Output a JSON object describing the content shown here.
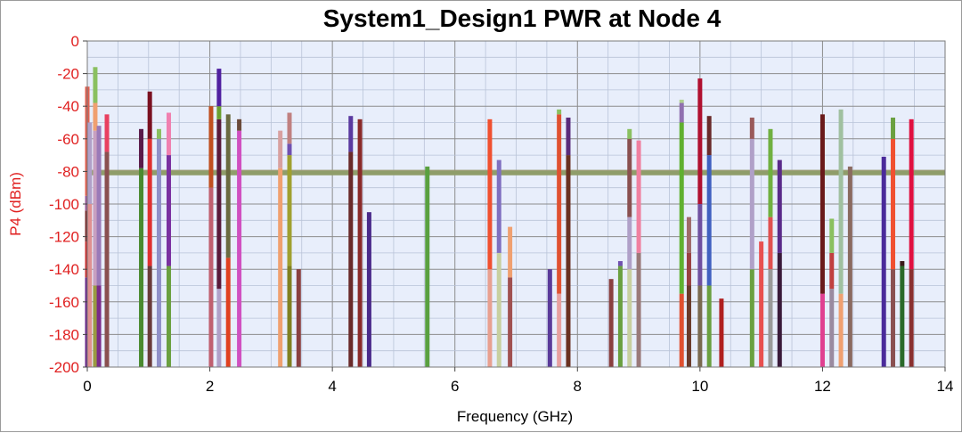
{
  "chart_data": {
    "type": "bar",
    "title": "System1_Design1 PWR at Node 4",
    "xlabel": "Frequency (GHz)",
    "ylabel": "P4 (dBm)",
    "xlim": [
      0,
      14
    ],
    "ylim": [
      -200,
      0
    ],
    "x_ticks": [
      "0",
      "2",
      "4",
      "6",
      "8",
      "10",
      "12",
      "14"
    ],
    "y_ticks": [
      "0",
      "-20",
      "-40",
      "-60",
      "-80",
      "-100",
      "-120",
      "-140",
      "-160",
      "-180",
      "-200"
    ],
    "grid": true,
    "background_color": "#e8eefb",
    "ytick_color": "#e02020",
    "noise_floor": {
      "y": -81,
      "color": "#8f9d6a"
    },
    "spectral_lines": [
      {
        "x": 0.0,
        "segments": [
          [
            -200,
            -145,
            "#6a2a8a"
          ],
          [
            -145,
            -123,
            "#c83232"
          ],
          [
            -123,
            -104,
            "#7a3030"
          ],
          [
            -104,
            -95,
            "#9a5a9a"
          ],
          [
            -95,
            -28,
            "#e06050"
          ]
        ]
      },
      {
        "x": 0.04,
        "segments": [
          [
            -200,
            -100,
            "#e09090"
          ],
          [
            -100,
            -50,
            "#b0a0c8"
          ]
        ]
      },
      {
        "x": 0.13,
        "segments": [
          [
            -200,
            -150,
            "#9a9a40"
          ],
          [
            -150,
            -55,
            "#c8a0c0"
          ],
          [
            -55,
            -38,
            "#f0a070"
          ],
          [
            -38,
            -16,
            "#8ac060"
          ]
        ]
      },
      {
        "x": 0.19,
        "segments": [
          [
            -200,
            -150,
            "#7a2a8a"
          ],
          [
            -150,
            -52,
            "#9a7ab8"
          ]
        ]
      },
      {
        "x": 0.32,
        "segments": [
          [
            -200,
            -68,
            "#8a5050"
          ],
          [
            -68,
            -45,
            "#e84060"
          ]
        ]
      },
      {
        "x": 0.88,
        "segments": [
          [
            -200,
            -78,
            "#4a8a30"
          ],
          [
            -78,
            -54,
            "#5a1a4a"
          ]
        ]
      },
      {
        "x": 1.02,
        "segments": [
          [
            -200,
            -138,
            "#6a3a3a"
          ],
          [
            -138,
            -60,
            "#e03030"
          ],
          [
            -60,
            -31,
            "#7a1020"
          ]
        ]
      },
      {
        "x": 1.17,
        "segments": [
          [
            -200,
            -60,
            "#9090c8"
          ],
          [
            -60,
            -54,
            "#8ac060"
          ]
        ]
      },
      {
        "x": 1.33,
        "segments": [
          [
            -200,
            -138,
            "#6aa040"
          ],
          [
            -138,
            -70,
            "#7a30a0"
          ],
          [
            -70,
            -44,
            "#f080b0"
          ]
        ]
      },
      {
        "x": 2.02,
        "segments": [
          [
            -200,
            -90,
            "#c06070"
          ],
          [
            -90,
            -40,
            "#c05020"
          ]
        ]
      },
      {
        "x": 2.15,
        "segments": [
          [
            -200,
            -152,
            "#b0a0c8"
          ],
          [
            -152,
            -48,
            "#5a1a3a"
          ],
          [
            -48,
            -40,
            "#6aa030"
          ],
          [
            -40,
            -17,
            "#5020a0"
          ]
        ]
      },
      {
        "x": 2.3,
        "segments": [
          [
            -200,
            -133,
            "#e04020"
          ],
          [
            -133,
            -45,
            "#6a6a40"
          ]
        ]
      },
      {
        "x": 2.48,
        "segments": [
          [
            -200,
            -55,
            "#d050c0"
          ],
          [
            -55,
            -48,
            "#6a4a3a"
          ]
        ]
      },
      {
        "x": 3.15,
        "segments": [
          [
            -200,
            -78,
            "#f0a070"
          ],
          [
            -78,
            -55,
            "#d8a0a0"
          ]
        ]
      },
      {
        "x": 3.3,
        "segments": [
          [
            -200,
            -138,
            "#808020"
          ],
          [
            -138,
            -70,
            "#a0a030"
          ],
          [
            -70,
            -63,
            "#7050b0"
          ],
          [
            -63,
            -44,
            "#c08080"
          ]
        ]
      },
      {
        "x": 3.45,
        "segments": [
          [
            -200,
            -140,
            "#8a4040"
          ]
        ]
      },
      {
        "x": 4.3,
        "segments": [
          [
            -200,
            -68,
            "#6a2a2a"
          ],
          [
            -68,
            -46,
            "#5a3aa0"
          ]
        ]
      },
      {
        "x": 4.45,
        "segments": [
          [
            -200,
            -48,
            "#8a2a2a"
          ]
        ]
      },
      {
        "x": 4.6,
        "segments": [
          [
            -200,
            -105,
            "#4a2a8a"
          ]
        ]
      },
      {
        "x": 5.55,
        "segments": [
          [
            -200,
            -77,
            "#5aa040"
          ]
        ]
      },
      {
        "x": 6.57,
        "segments": [
          [
            -200,
            -140,
            "#e8a090"
          ],
          [
            -140,
            -48,
            "#f05030"
          ]
        ]
      },
      {
        "x": 6.72,
        "segments": [
          [
            -200,
            -130,
            "#c8d0a0"
          ],
          [
            -130,
            -73,
            "#8070c0"
          ]
        ]
      },
      {
        "x": 6.9,
        "segments": [
          [
            -200,
            -145,
            "#a05050"
          ],
          [
            -145,
            -114,
            "#f0a070"
          ]
        ]
      },
      {
        "x": 7.55,
        "segments": [
          [
            -200,
            -140,
            "#5a3a9a"
          ]
        ]
      },
      {
        "x": 7.7,
        "segments": [
          [
            -200,
            -155,
            "#e8a0a0"
          ],
          [
            -155,
            -45,
            "#e05030"
          ],
          [
            -45,
            -42,
            "#8ac060"
          ]
        ]
      },
      {
        "x": 7.85,
        "segments": [
          [
            -200,
            -70,
            "#6a3020"
          ],
          [
            -70,
            -47,
            "#5a2a7a"
          ]
        ]
      },
      {
        "x": 8.55,
        "segments": [
          [
            -200,
            -146,
            "#8a4040"
          ]
        ]
      },
      {
        "x": 8.7,
        "segments": [
          [
            -200,
            -138,
            "#6aa040"
          ],
          [
            -138,
            -135,
            "#7050b0"
          ]
        ]
      },
      {
        "x": 8.85,
        "segments": [
          [
            -200,
            -140,
            "#c8d0a0"
          ],
          [
            -140,
            -108,
            "#b0a0c8"
          ],
          [
            -108,
            -60,
            "#8a5050"
          ],
          [
            -60,
            -54,
            "#8ac060"
          ]
        ]
      },
      {
        "x": 9.0,
        "segments": [
          [
            -200,
            -130,
            "#9a7a7a"
          ],
          [
            -130,
            -61,
            "#f080a0"
          ]
        ]
      },
      {
        "x": 9.7,
        "segments": [
          [
            -200,
            -155,
            "#e05030"
          ],
          [
            -155,
            -50,
            "#60b030"
          ],
          [
            -50,
            -38,
            "#9070b0"
          ],
          [
            -38,
            -36,
            "#b0d090"
          ]
        ]
      },
      {
        "x": 9.82,
        "segments": [
          [
            -200,
            -150,
            "#6a3a2a"
          ],
          [
            -150,
            -130,
            "#9a4040"
          ],
          [
            -130,
            -108,
            "#a06a6a"
          ]
        ]
      },
      {
        "x": 10.0,
        "segments": [
          [
            -200,
            -150,
            "#7a6a50"
          ],
          [
            -150,
            -100,
            "#7050a0"
          ],
          [
            -100,
            -23,
            "#b01030"
          ]
        ]
      },
      {
        "x": 10.15,
        "segments": [
          [
            -200,
            -150,
            "#6aa040"
          ],
          [
            -150,
            -70,
            "#4060c0"
          ],
          [
            -70,
            -46,
            "#6a2a2a"
          ]
        ]
      },
      {
        "x": 10.35,
        "segments": [
          [
            -200,
            -158,
            "#b02020"
          ]
        ]
      },
      {
        "x": 10.85,
        "segments": [
          [
            -200,
            -140,
            "#6aa040"
          ],
          [
            -140,
            -60,
            "#b0a0c8"
          ],
          [
            -60,
            -47,
            "#9a5a5a"
          ]
        ]
      },
      {
        "x": 11.0,
        "segments": [
          [
            -200,
            -123,
            "#e85050"
          ]
        ]
      },
      {
        "x": 11.15,
        "segments": [
          [
            -200,
            -140,
            "#9a9a9a"
          ],
          [
            -140,
            -108,
            "#e05050"
          ],
          [
            -108,
            -54,
            "#70b040"
          ]
        ]
      },
      {
        "x": 11.3,
        "segments": [
          [
            -200,
            -130,
            "#3a1a3a"
          ],
          [
            -130,
            -73,
            "#5a2a8a"
          ]
        ]
      },
      {
        "x": 12.0,
        "segments": [
          [
            -200,
            -155,
            "#e04090"
          ],
          [
            -155,
            -45,
            "#6a1a1a"
          ]
        ]
      },
      {
        "x": 12.15,
        "segments": [
          [
            -200,
            -152,
            "#9a8aa0"
          ],
          [
            -152,
            -130,
            "#c04040"
          ],
          [
            -130,
            -109,
            "#8ac060"
          ]
        ]
      },
      {
        "x": 12.3,
        "segments": [
          [
            -200,
            -155,
            "#f0a070"
          ],
          [
            -155,
            -42,
            "#a0c0a0"
          ]
        ]
      },
      {
        "x": 12.45,
        "segments": [
          [
            -200,
            -77,
            "#8a6a60"
          ]
        ]
      },
      {
        "x": 13.0,
        "segments": [
          [
            -200,
            -71,
            "#4a2a9a"
          ]
        ]
      },
      {
        "x": 13.15,
        "segments": [
          [
            -200,
            -140,
            "#8a5050"
          ],
          [
            -140,
            -60,
            "#f05030"
          ],
          [
            -60,
            -47,
            "#6aa040"
          ]
        ]
      },
      {
        "x": 13.3,
        "segments": [
          [
            -200,
            -138,
            "#2a6a2a"
          ],
          [
            -138,
            -135,
            "#3a1a1a"
          ]
        ]
      },
      {
        "x": 13.45,
        "segments": [
          [
            -200,
            -140,
            "#8a3030"
          ],
          [
            -140,
            -48,
            "#e01040"
          ]
        ]
      }
    ]
  }
}
